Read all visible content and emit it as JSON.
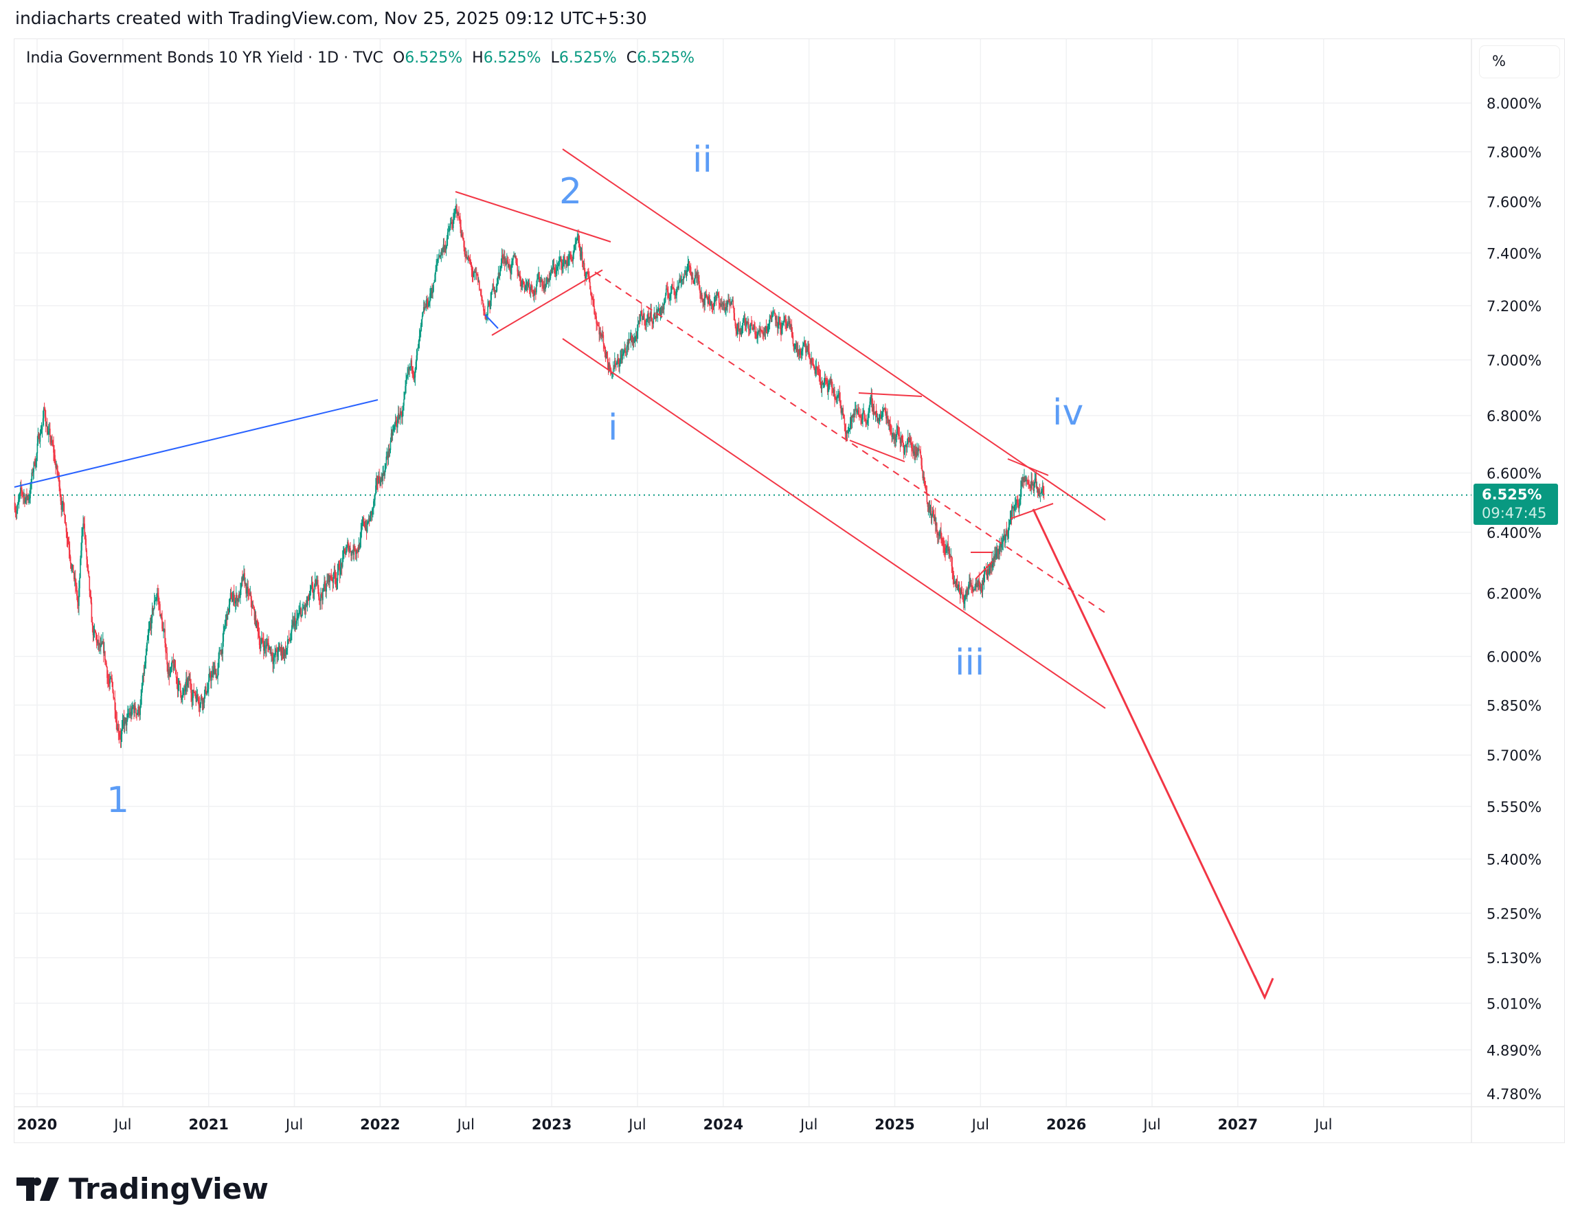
{
  "header": {
    "caption": "indiacharts created with TradingView.com, Nov 25, 2025 09:12 UTC+5:30"
  },
  "legend": {
    "symbol": "India Government Bonds 10 YR Yield · 1D · TVC",
    "o_label": "O",
    "o": "6.525%",
    "h_label": "H",
    "h": "6.525%",
    "l_label": "L",
    "l": "6.525%",
    "c_label": "C",
    "c": "6.525%"
  },
  "scale_unit": "%",
  "price_tag": {
    "price": "6.525%",
    "countdown": "09:47:45"
  },
  "logo": {
    "text": "TradingView"
  },
  "colors": {
    "up": "#089981",
    "down": "#f23645",
    "annotation": "#f23645",
    "wave_label": "#5b9cf6",
    "trendline": "#2962ff"
  },
  "chart_data": {
    "type": "candlestick",
    "title": "India Government Bonds 10 YR Yield",
    "interval": "1D",
    "y_scale": "log",
    "ylim": [
      4.75,
      8.05
    ],
    "y_ticks": [
      "8.000%",
      "7.800%",
      "7.600%",
      "7.400%",
      "7.200%",
      "7.000%",
      "6.800%",
      "6.600%",
      "6.400%",
      "6.200%",
      "6.000%",
      "5.850%",
      "5.700%",
      "5.550%",
      "5.400%",
      "5.250%",
      "5.130%",
      "5.010%",
      "4.890%",
      "4.780%"
    ],
    "y_tick_values": [
      8.0,
      7.8,
      7.6,
      7.4,
      7.2,
      7.0,
      6.8,
      6.6,
      6.4,
      6.2,
      6.0,
      5.85,
      5.7,
      5.55,
      5.4,
      5.25,
      5.13,
      5.01,
      4.89,
      4.78
    ],
    "x_ticks": [
      {
        "label": "2020",
        "t": 2020.0,
        "major": true
      },
      {
        "label": "Jul",
        "t": 2020.5
      },
      {
        "label": "2021",
        "t": 2021.0,
        "major": true
      },
      {
        "label": "Jul",
        "t": 2021.5
      },
      {
        "label": "2022",
        "t": 2022.0,
        "major": true
      },
      {
        "label": "Jul",
        "t": 2022.5
      },
      {
        "label": "2023",
        "t": 2023.0,
        "major": true
      },
      {
        "label": "Jul",
        "t": 2023.5
      },
      {
        "label": "2024",
        "t": 2024.0,
        "major": true
      },
      {
        "label": "Jul",
        "t": 2024.5
      },
      {
        "label": "2025",
        "t": 2025.0,
        "major": true
      },
      {
        "label": "Jul",
        "t": 2025.5
      },
      {
        "label": "2026",
        "t": 2026.0,
        "major": true
      },
      {
        "label": "Jul",
        "t": 2026.5
      },
      {
        "label": "2027",
        "t": 2027.0,
        "major": true
      },
      {
        "label": "Jul",
        "t": 2027.5
      }
    ],
    "last_price": 6.525,
    "path": [
      [
        2019.87,
        6.5
      ],
      [
        2019.95,
        6.52
      ],
      [
        2020.04,
        6.82
      ],
      [
        2020.12,
        6.58
      ],
      [
        2020.2,
        6.35
      ],
      [
        2020.24,
        6.15
      ],
      [
        2020.27,
        6.45
      ],
      [
        2020.32,
        6.05
      ],
      [
        2020.4,
        5.95
      ],
      [
        2020.47,
        5.82
      ],
      [
        2020.52,
        5.78
      ],
      [
        2020.6,
        5.85
      ],
      [
        2020.66,
        6.05
      ],
      [
        2020.7,
        6.2
      ],
      [
        2020.76,
        5.98
      ],
      [
        2020.85,
        5.88
      ],
      [
        2020.95,
        5.9
      ],
      [
        2021.05,
        5.95
      ],
      [
        2021.12,
        6.15
      ],
      [
        2021.2,
        6.22
      ],
      [
        2021.3,
        6.05
      ],
      [
        2021.42,
        6.0
      ],
      [
        2021.55,
        6.12
      ],
      [
        2021.65,
        6.2
      ],
      [
        2021.8,
        6.32
      ],
      [
        2021.95,
        6.45
      ],
      [
        2022.05,
        6.68
      ],
      [
        2022.15,
        6.85
      ],
      [
        2022.25,
        7.1
      ],
      [
        2022.35,
        7.4
      ],
      [
        2022.45,
        7.55
      ],
      [
        2022.52,
        7.35
      ],
      [
        2022.62,
        7.15
      ],
      [
        2022.72,
        7.4
      ],
      [
        2022.82,
        7.3
      ],
      [
        2022.95,
        7.3
      ],
      [
        2023.05,
        7.35
      ],
      [
        2023.15,
        7.4
      ],
      [
        2023.25,
        7.2
      ],
      [
        2023.33,
        7.0
      ],
      [
        2023.45,
        7.05
      ],
      [
        2023.55,
        7.15
      ],
      [
        2023.65,
        7.2
      ],
      [
        2023.78,
        7.35
      ],
      [
        2023.9,
        7.25
      ],
      [
        2024.05,
        7.18
      ],
      [
        2024.2,
        7.08
      ],
      [
        2024.3,
        7.2
      ],
      [
        2024.4,
        7.05
      ],
      [
        2024.5,
        7.0
      ],
      [
        2024.62,
        6.88
      ],
      [
        2024.72,
        6.78
      ],
      [
        2024.82,
        6.82
      ],
      [
        2024.95,
        6.8
      ],
      [
        2025.05,
        6.72
      ],
      [
        2025.15,
        6.68
      ],
      [
        2025.22,
        6.45
      ],
      [
        2025.3,
        6.32
      ],
      [
        2025.36,
        6.22
      ],
      [
        2025.41,
        6.18
      ],
      [
        2025.48,
        6.28
      ],
      [
        2025.58,
        6.32
      ],
      [
        2025.66,
        6.42
      ],
      [
        2025.74,
        6.55
      ],
      [
        2025.8,
        6.56
      ],
      [
        2025.87,
        6.525
      ]
    ],
    "annotations": {
      "wave_labels": [
        "1",
        "2",
        "i",
        "ii",
        "iii",
        "iv"
      ]
    }
  }
}
